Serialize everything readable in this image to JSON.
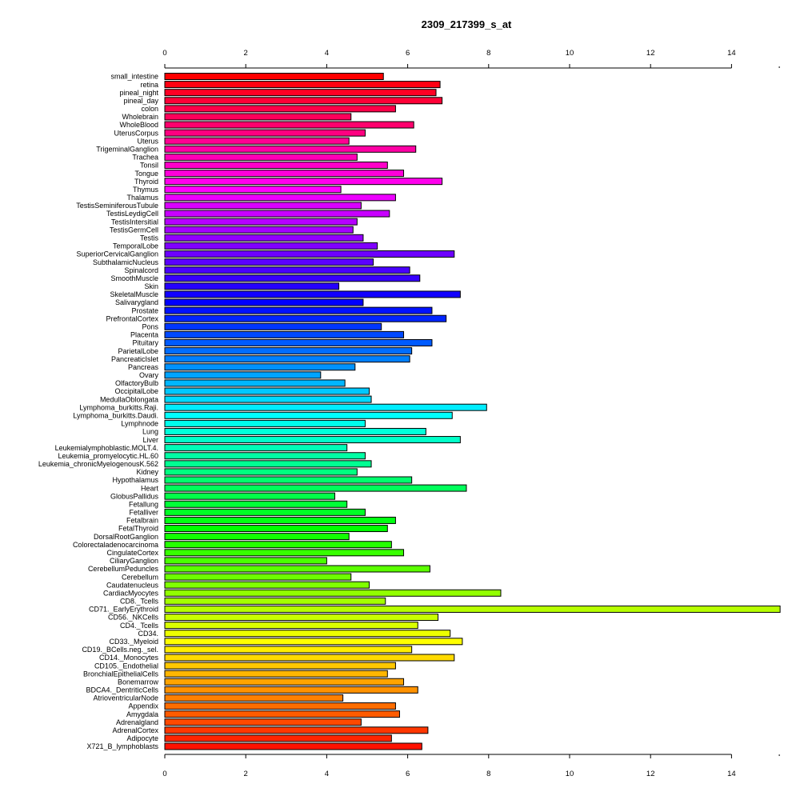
{
  "chart_data": {
    "type": "bar",
    "orientation": "horizontal",
    "title": "2309_217399_s_at",
    "xlim": [
      0,
      15.2
    ],
    "x_ticks": [
      0,
      2,
      4,
      6,
      8,
      10,
      12,
      14
    ],
    "x_tick_labels": [
      "0",
      "2",
      "4",
      "6",
      "8",
      "10",
      "12",
      "14"
    ],
    "axes": "top and bottom",
    "grid": false,
    "bar_border_color": "#000000",
    "bar_color_scheme": "rainbow (top red → magenta → blue → cyan → green → yellow → orange → red bottom)",
    "categories": [
      "small_intestine",
      "retina",
      "pineal_night",
      "pineal_day",
      "colon",
      "Wholebrain",
      "WholeBlood",
      "UterusCorpus",
      "Uterus",
      "TrigeminalGanglion",
      "Trachea",
      "Tonsil",
      "Tongue",
      "Thyroid",
      "Thymus",
      "Thalamus",
      "TestisSeminiferousTubule",
      "TestisLeydigCell",
      "TestisIntersitial",
      "TestisGermCell",
      "Testis",
      "TemporalLobe",
      "SuperiorCervicalGanglion",
      "SubthalamicNucleus",
      "Spinalcord",
      "SmoothMuscle",
      "Skin",
      "SkeletalMuscle",
      "Salivarygland",
      "Prostate",
      "PrefrontalCortex",
      "Pons",
      "Placenta",
      "Pituitary",
      "ParietalLobe",
      "PancreaticIslet",
      "Pancreas",
      "Ovary",
      "OlfactoryBulb",
      "OccipitalLobe",
      "MedullaOblongata",
      "Lymphoma_burkitts.Raji.",
      "Lymphoma_burkitts.Daudi.",
      "Lymphnode",
      "Lung",
      "Liver",
      "Leukemialymphoblastic.MOLT.4.",
      "Leukemia_promyelocytic.HL.60",
      "Leukemia_chronicMyelogenousK.562",
      "Kidney",
      "Hypothalamus",
      "Heart",
      "GlobusPallidus",
      "Fetallung",
      "Fetalliver",
      "Fetalbrain",
      "FetalThyroid",
      "DorsalRootGanglion",
      "Colorectaladenocarcinoma",
      "CingulateCortex",
      "CiliaryGanglion",
      "CerebellumPeduncles",
      "Cerebellum",
      "Caudatenucleus",
      "CardiacMyocytes",
      "CD8._Tcells",
      "CD71._EarlyErythroid",
      "CD56._NKCells",
      "CD4._Tcells",
      "CD34.",
      "CD33._Myeloid",
      "CD19._BCells.neg._sel.",
      "CD14._Monocytes",
      "CD105._Endothelial",
      "BronchialEpithelialCells",
      "Bonemarrow",
      "BDCA4._DentriticCells",
      "AtrioventricularNode",
      "Appendix",
      "Amygdala",
      "Adrenalgland",
      "AdrenalCortex",
      "Adipocyte",
      "X721_B_lymphoblasts"
    ],
    "values": [
      5.4,
      6.8,
      6.7,
      6.85,
      5.7,
      4.6,
      6.15,
      4.95,
      4.55,
      6.2,
      4.75,
      5.5,
      5.9,
      6.85,
      4.35,
      5.7,
      4.85,
      5.55,
      4.75,
      4.65,
      4.9,
      5.25,
      7.15,
      5.15,
      6.05,
      6.3,
      4.3,
      7.3,
      4.9,
      6.6,
      6.95,
      5.35,
      5.9,
      6.6,
      6.1,
      6.05,
      4.7,
      3.85,
      4.45,
      5.05,
      5.1,
      7.95,
      7.1,
      4.95,
      6.45,
      7.3,
      4.5,
      4.95,
      5.1,
      4.75,
      6.1,
      7.45,
      4.2,
      4.5,
      4.95,
      5.7,
      5.5,
      4.55,
      5.6,
      5.9,
      4.0,
      6.55,
      4.6,
      5.05,
      8.3,
      5.45,
      15.2,
      6.75,
      6.25,
      7.05,
      7.35,
      6.1,
      7.15,
      5.7,
      5.5,
      5.9,
      6.25,
      4.4,
      5.7,
      5.8,
      4.85,
      6.5,
      5.6,
      6.35
    ]
  }
}
